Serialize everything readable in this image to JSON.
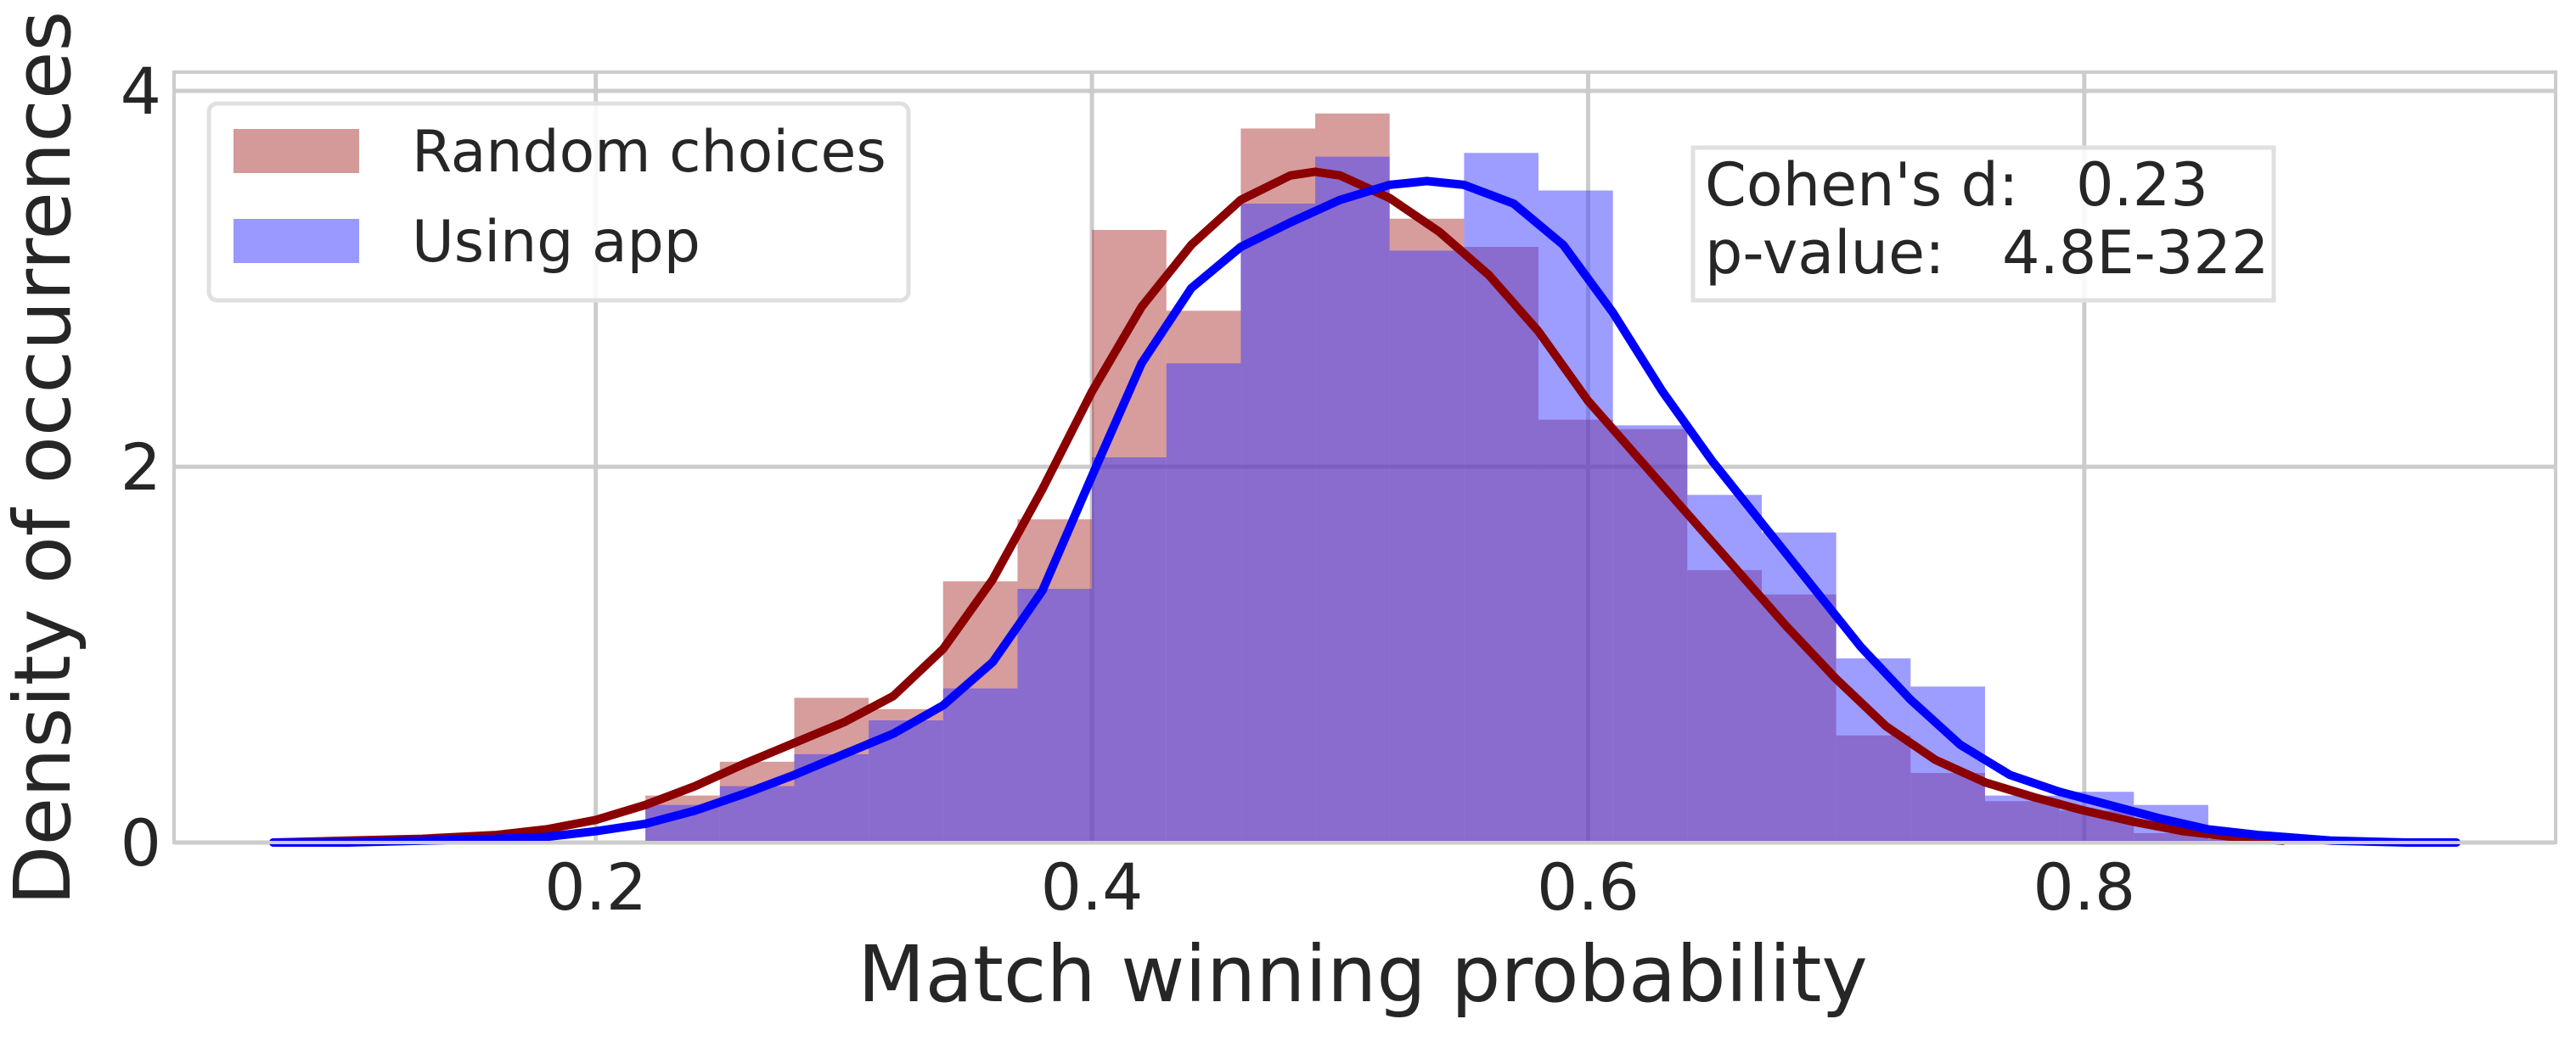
{
  "chart_data": {
    "type": "histogram",
    "title": "",
    "xlabel": "Match winning probability",
    "ylabel": "Density of occurrences",
    "xlim": [
      0.03,
      0.99
    ],
    "ylim": [
      0,
      4.1
    ],
    "xticks": [
      0.2,
      0.4,
      0.6,
      0.8
    ],
    "yticks": [
      0,
      2,
      4
    ],
    "grid": true,
    "legend_position": "top-left",
    "series": [
      {
        "name": "Random choices",
        "kind": "histogram",
        "color": "#b03a3a",
        "bin_edges": [
          0.22,
          0.25,
          0.28,
          0.31,
          0.34,
          0.37,
          0.4,
          0.43,
          0.46,
          0.49,
          0.52,
          0.55,
          0.58,
          0.61,
          0.64,
          0.67,
          0.7,
          0.73,
          0.76,
          0.79,
          0.82,
          0.85,
          0.88
        ],
        "values": [
          0.25,
          0.43,
          0.77,
          0.71,
          1.39,
          1.72,
          3.26,
          2.83,
          3.8,
          3.88,
          3.32,
          3.17,
          2.25,
          2.2,
          1.45,
          1.32,
          0.57,
          0.37,
          0.22,
          0.17,
          0.05,
          0.02
        ]
      },
      {
        "name": "Using app",
        "kind": "histogram",
        "color": "#3c3cff",
        "bin_edges": [
          0.22,
          0.25,
          0.28,
          0.31,
          0.34,
          0.37,
          0.4,
          0.43,
          0.46,
          0.49,
          0.52,
          0.55,
          0.58,
          0.61,
          0.64,
          0.67,
          0.7,
          0.73,
          0.76,
          0.79,
          0.82,
          0.85,
          0.88
        ],
        "values": [
          0.2,
          0.3,
          0.47,
          0.65,
          0.82,
          1.35,
          2.05,
          2.55,
          3.4,
          3.65,
          3.15,
          3.67,
          3.47,
          2.22,
          1.85,
          1.65,
          0.98,
          0.83,
          0.25,
          0.27,
          0.2,
          0.02
        ]
      },
      {
        "name": "Random choices KDE",
        "kind": "line",
        "color": "#8b0000",
        "x": [
          0.07,
          0.1,
          0.13,
          0.16,
          0.18,
          0.2,
          0.22,
          0.24,
          0.26,
          0.28,
          0.3,
          0.32,
          0.34,
          0.36,
          0.38,
          0.4,
          0.42,
          0.44,
          0.46,
          0.48,
          0.49,
          0.5,
          0.52,
          0.54,
          0.56,
          0.58,
          0.6,
          0.62,
          0.64,
          0.66,
          0.68,
          0.7,
          0.72,
          0.74,
          0.76,
          0.78,
          0.8,
          0.82,
          0.84,
          0.86,
          0.88
        ],
        "y": [
          0.0,
          0.01,
          0.02,
          0.04,
          0.07,
          0.12,
          0.2,
          0.3,
          0.42,
          0.53,
          0.64,
          0.78,
          1.03,
          1.4,
          1.88,
          2.4,
          2.85,
          3.18,
          3.42,
          3.55,
          3.57,
          3.55,
          3.43,
          3.25,
          3.02,
          2.72,
          2.35,
          2.05,
          1.75,
          1.45,
          1.15,
          0.87,
          0.62,
          0.44,
          0.32,
          0.24,
          0.17,
          0.11,
          0.06,
          0.03,
          0.01
        ]
      },
      {
        "name": "Using app KDE",
        "kind": "line",
        "color": "#0000ff",
        "x": [
          0.07,
          0.1,
          0.13,
          0.16,
          0.18,
          0.2,
          0.22,
          0.24,
          0.26,
          0.28,
          0.3,
          0.32,
          0.34,
          0.36,
          0.38,
          0.4,
          0.42,
          0.44,
          0.46,
          0.48,
          0.5,
          0.52,
          0.535,
          0.55,
          0.57,
          0.59,
          0.61,
          0.63,
          0.65,
          0.67,
          0.69,
          0.71,
          0.73,
          0.75,
          0.77,
          0.79,
          0.81,
          0.83,
          0.85,
          0.87,
          0.9,
          0.93,
          0.95
        ],
        "y": [
          0.0,
          0.0,
          0.01,
          0.02,
          0.03,
          0.06,
          0.1,
          0.17,
          0.26,
          0.36,
          0.47,
          0.58,
          0.73,
          0.96,
          1.34,
          1.95,
          2.55,
          2.95,
          3.17,
          3.3,
          3.42,
          3.5,
          3.52,
          3.5,
          3.4,
          3.18,
          2.82,
          2.4,
          2.03,
          1.7,
          1.37,
          1.04,
          0.76,
          0.52,
          0.36,
          0.27,
          0.2,
          0.13,
          0.07,
          0.04,
          0.01,
          0.0,
          0.0
        ]
      }
    ],
    "legend": {
      "entries": [
        {
          "label": "Random choices",
          "swatch_color": "#d49a9a"
        },
        {
          "label": "Using app",
          "swatch_color": "#9999ff"
        }
      ]
    },
    "annotation": {
      "lines": [
        {
          "label": "Cohen's d:",
          "value": "0.23"
        },
        {
          "label": "p-value:",
          "value": "4.8E-322"
        }
      ]
    }
  }
}
